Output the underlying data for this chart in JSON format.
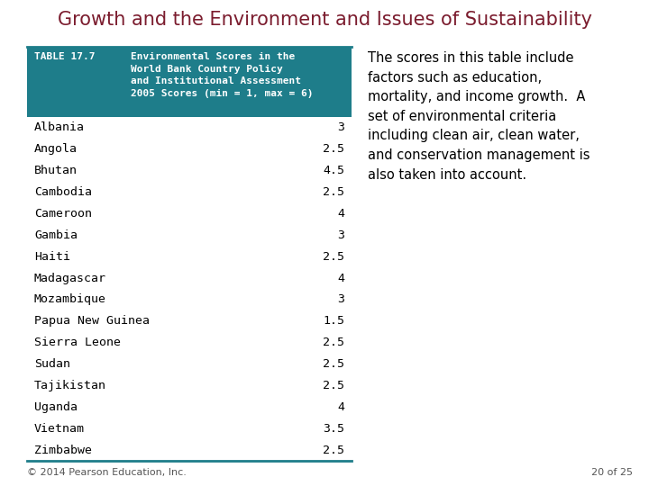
{
  "title": "Growth and the Environment and Issues of Sustainability",
  "title_color": "#7B1C2E",
  "title_fontsize": 15,
  "table_header_label": "TABLE 17.7",
  "table_header_desc": "Environmental Scores in the\nWorld Bank Country Policy\nand Institutional Assessment\n2005 Scores (min = 1, max = 6)",
  "header_bg_color": "#1E7D8A",
  "header_text_color": "#FFFFFF",
  "countries": [
    "Albania",
    "Angola",
    "Bhutan",
    "Cambodia",
    "Cameroon",
    "Gambia",
    "Haiti",
    "Madagascar",
    "Mozambique",
    "Papua New Guinea",
    "Sierra Leone",
    "Sudan",
    "Tajikistan",
    "Uganda",
    "Vietnam",
    "Zimbabwe"
  ],
  "scores": [
    3,
    2.5,
    4.5,
    2.5,
    4,
    3,
    2.5,
    4,
    3,
    1.5,
    2.5,
    2.5,
    2.5,
    4,
    3.5,
    2.5
  ],
  "table_border_color": "#1E7D8A",
  "side_text": "The scores in this table include\nfactors such as education,\nmortality, and income growth.  A\nset of environmental criteria\nincluding clean air, clean water,\nand conservation management is\nalso taken into account.",
  "side_text_fontsize": 10.5,
  "footer_text": "© 2014 Pearson Education, Inc.",
  "footer_right": "20 of 25",
  "footer_fontsize": 8,
  "bg_color": "#FFFFFF",
  "row_font": "monospace",
  "row_fontsize": 9.5,
  "header_fontsize": 8.0
}
